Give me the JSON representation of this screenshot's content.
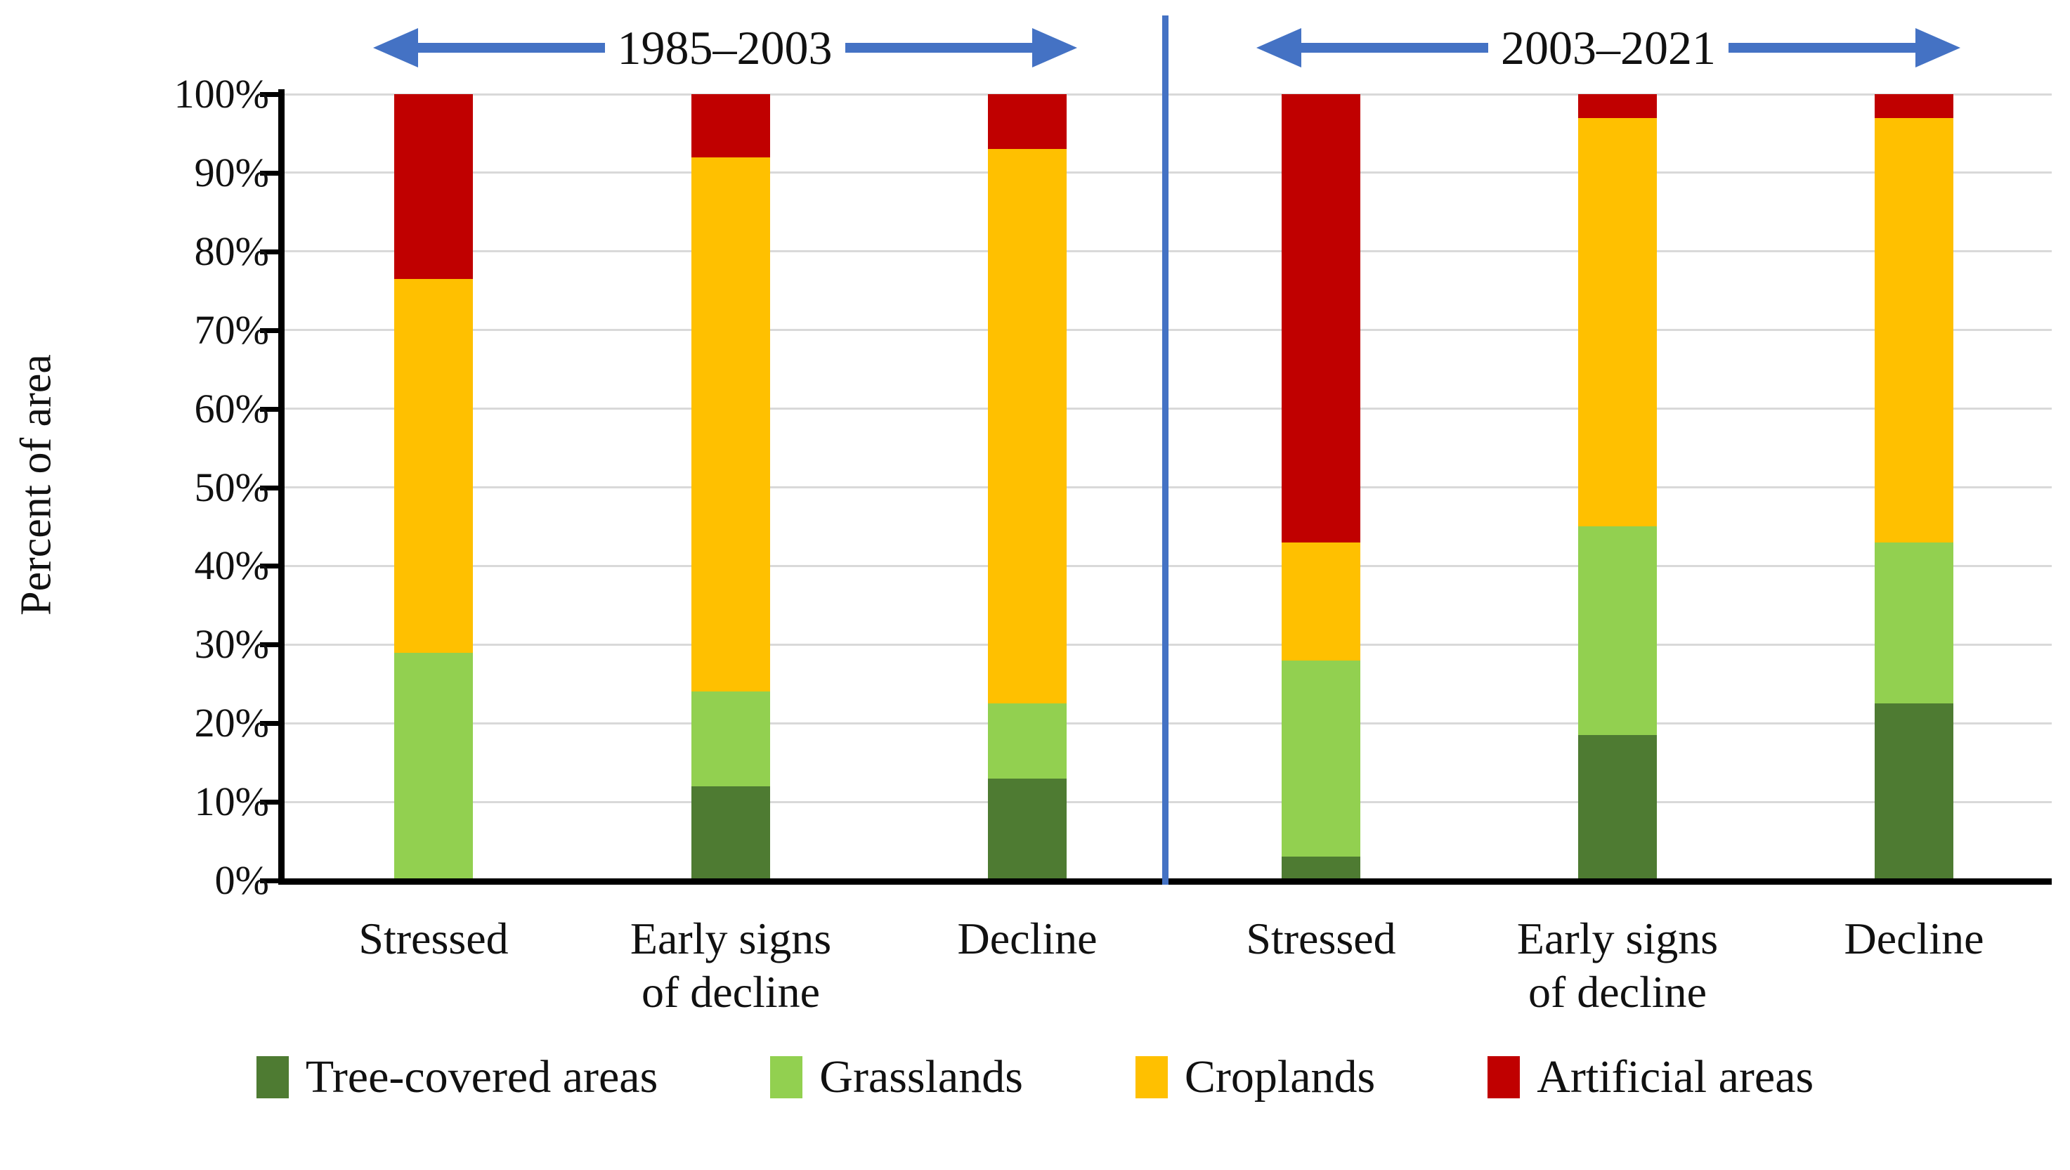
{
  "chart_data": {
    "type": "bar",
    "stacked": true,
    "orientation": "vertical",
    "title": "",
    "ylabel": "Percent of area",
    "ylim": [
      0,
      100
    ],
    "y_tick_labels": [
      "0%",
      "10%",
      "20%",
      "30%",
      "40%",
      "50%",
      "60%",
      "70%",
      "80%",
      "90%",
      "100%"
    ],
    "grid": "horizontal",
    "legend_position": "bottom",
    "groups": [
      {
        "label": "1985–2003",
        "category_indexes": [
          0,
          1,
          2
        ]
      },
      {
        "label": "2003–2021",
        "category_indexes": [
          3,
          4,
          5
        ]
      }
    ],
    "categories": [
      "Stressed",
      "Early signs of decline",
      "Decline",
      "Stressed",
      "Early signs of decline",
      "Decline"
    ],
    "categories_display": [
      "Stressed",
      "Early signs\nof decline",
      "Decline",
      "Stressed",
      "Early signs\nof decline",
      "Decline"
    ],
    "series": [
      {
        "name": "Tree-covered areas",
        "color": "#4e7b32",
        "values": [
          0,
          12,
          13,
          3,
          18.5,
          22.5
        ]
      },
      {
        "name": "Grasslands",
        "color": "#92d050",
        "values": [
          29,
          12,
          9.5,
          25,
          26.5,
          20.5
        ]
      },
      {
        "name": "Croplands",
        "color": "#ffc000",
        "values": [
          47.5,
          68,
          70.5,
          15,
          52,
          54
        ]
      },
      {
        "name": "Artificial areas",
        "color": "#c00000",
        "values": [
          23.5,
          8,
          7,
          57,
          3,
          3
        ]
      }
    ],
    "colors": {
      "arrow_blue": "#4472c4",
      "divider_blue": "#4472c4",
      "gridline": "#d9d9d9",
      "axis": "#000000"
    }
  }
}
